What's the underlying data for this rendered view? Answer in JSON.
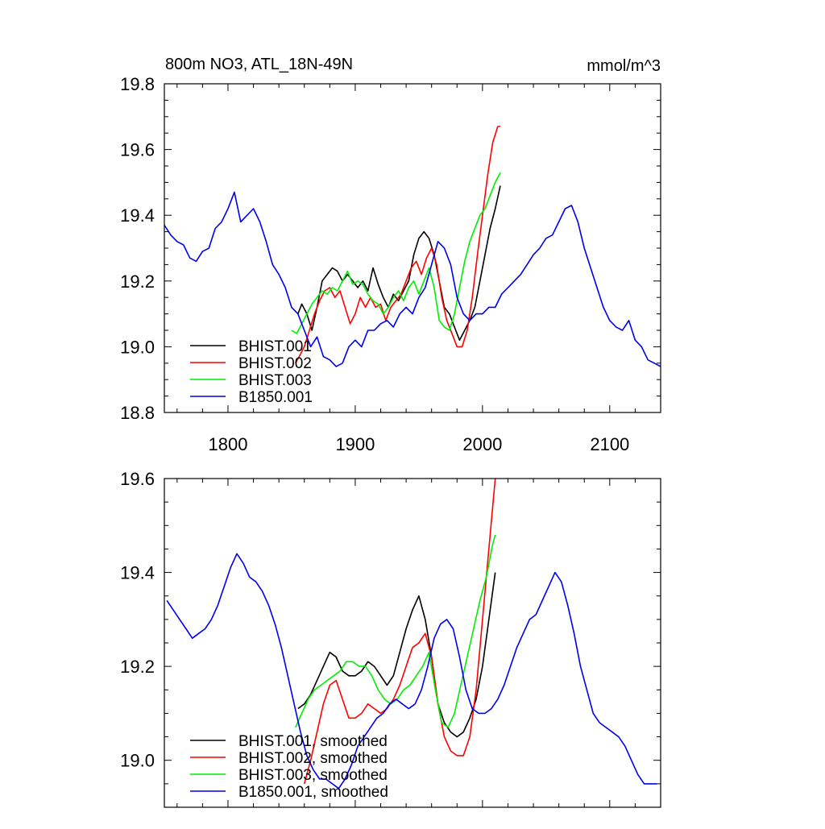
{
  "chart_data": [
    {
      "type": "line",
      "title": "800m NO3, ATL_18N-49N",
      "units": "mmol/m^3",
      "xlim": [
        1750,
        2140
      ],
      "ylim": [
        18.8,
        19.8
      ],
      "xticks": [
        1800,
        1900,
        2000,
        2100
      ],
      "xtick_labels": [
        "1800",
        "1900",
        "2000",
        "2100"
      ],
      "yticks": [
        18.8,
        19.0,
        19.2,
        19.4,
        19.6,
        19.8
      ],
      "ytick_labels": [
        "18.8",
        "19.0",
        "19.2",
        "19.4",
        "19.6",
        "19.8"
      ],
      "legend_position": "bottom-left",
      "series": [
        {
          "name": "BHIST.001",
          "color": "#000000",
          "x": [
            1855,
            1858,
            1862,
            1866,
            1870,
            1874,
            1878,
            1882,
            1886,
            1890,
            1894,
            1898,
            1902,
            1906,
            1910,
            1914,
            1918,
            1922,
            1926,
            1930,
            1934,
            1938,
            1942,
            1946,
            1950,
            1954,
            1958,
            1962,
            1966,
            1970,
            1974,
            1978,
            1982,
            1986,
            1990,
            1994,
            1998,
            2002,
            2006,
            2010,
            2014
          ],
          "y": [
            19.1,
            19.13,
            19.1,
            19.05,
            19.12,
            19.2,
            19.22,
            19.24,
            19.23,
            19.2,
            19.22,
            19.2,
            19.18,
            19.2,
            19.17,
            19.24,
            19.19,
            19.15,
            19.12,
            19.16,
            19.14,
            19.17,
            19.2,
            19.28,
            19.33,
            19.35,
            19.33,
            19.28,
            19.2,
            19.12,
            19.1,
            19.06,
            19.02,
            19.05,
            19.08,
            19.12,
            19.2,
            19.28,
            19.36,
            19.42,
            19.49
          ]
        },
        {
          "name": "BHIST.002",
          "color": "#ff0000",
          "x": [
            1853,
            1856,
            1860,
            1864,
            1868,
            1872,
            1876,
            1880,
            1884,
            1888,
            1892,
            1896,
            1900,
            1904,
            1908,
            1912,
            1916,
            1920,
            1924,
            1928,
            1932,
            1936,
            1940,
            1944,
            1948,
            1952,
            1956,
            1960,
            1964,
            1968,
            1972,
            1976,
            1980,
            1984,
            1988,
            1992,
            1996,
            2000,
            2004,
            2008,
            2012,
            2014
          ],
          "y": [
            18.95,
            18.97,
            19.0,
            19.05,
            19.1,
            19.14,
            19.17,
            19.18,
            19.15,
            19.17,
            19.12,
            19.07,
            19.1,
            19.15,
            19.12,
            19.15,
            19.12,
            19.13,
            19.08,
            19.12,
            19.14,
            19.16,
            19.2,
            19.24,
            19.26,
            19.22,
            19.27,
            19.3,
            19.25,
            19.15,
            19.08,
            19.04,
            19.0,
            19.0,
            19.05,
            19.15,
            19.28,
            19.4,
            19.52,
            19.62,
            19.67,
            19.67
          ]
        },
        {
          "name": "BHIST.003",
          "color": "#00ee00",
          "x": [
            1850,
            1854,
            1858,
            1862,
            1866,
            1870,
            1874,
            1878,
            1882,
            1886,
            1890,
            1894,
            1898,
            1902,
            1906,
            1910,
            1914,
            1918,
            1922,
            1926,
            1930,
            1934,
            1938,
            1942,
            1946,
            1950,
            1954,
            1958,
            1962,
            1966,
            1970,
            1974,
            1978,
            1982,
            1986,
            1990,
            1994,
            1998,
            2002,
            2006,
            2010,
            2014
          ],
          "y": [
            19.05,
            19.04,
            19.07,
            19.1,
            19.13,
            19.15,
            19.17,
            19.16,
            19.18,
            19.17,
            19.2,
            19.23,
            19.19,
            19.2,
            19.19,
            19.16,
            19.14,
            19.13,
            19.1,
            19.12,
            19.15,
            19.17,
            19.14,
            19.18,
            19.2,
            19.16,
            19.2,
            19.24,
            19.18,
            19.08,
            19.06,
            19.05,
            19.1,
            19.18,
            19.26,
            19.32,
            19.36,
            19.4,
            19.42,
            19.46,
            19.5,
            19.53
          ]
        },
        {
          "name": "B1850.001",
          "color": "#0000ee",
          "x": [
            1750,
            1755,
            1760,
            1765,
            1770,
            1775,
            1780,
            1785,
            1790,
            1795,
            1800,
            1805,
            1810,
            1815,
            1820,
            1825,
            1830,
            1835,
            1840,
            1845,
            1850,
            1855,
            1860,
            1865,
            1870,
            1875,
            1880,
            1885,
            1890,
            1895,
            1900,
            1905,
            1910,
            1915,
            1920,
            1925,
            1930,
            1935,
            1940,
            1945,
            1950,
            1955,
            1960,
            1965,
            1970,
            1975,
            1980,
            1985,
            1990,
            1995,
            2000,
            2005,
            2010,
            2015,
            2020,
            2025,
            2030,
            2035,
            2040,
            2045,
            2050,
            2055,
            2060,
            2065,
            2070,
            2075,
            2080,
            2085,
            2090,
            2095,
            2100,
            2105,
            2110,
            2115,
            2120,
            2125,
            2130,
            2135,
            2140
          ],
          "y": [
            19.37,
            19.34,
            19.32,
            19.31,
            19.27,
            19.26,
            19.29,
            19.3,
            19.36,
            19.38,
            19.42,
            19.47,
            19.38,
            19.4,
            19.42,
            19.38,
            19.32,
            19.25,
            19.22,
            19.18,
            19.12,
            19.1,
            19.05,
            19.0,
            19.03,
            18.97,
            18.96,
            18.94,
            18.95,
            19.0,
            19.02,
            19.0,
            19.05,
            19.05,
            19.07,
            19.08,
            19.06,
            19.1,
            19.12,
            19.1,
            19.15,
            19.18,
            19.25,
            19.32,
            19.3,
            19.25,
            19.15,
            19.1,
            19.08,
            19.1,
            19.1,
            19.12,
            19.12,
            19.16,
            19.18,
            19.2,
            19.22,
            19.25,
            19.28,
            19.3,
            19.33,
            19.34,
            19.38,
            19.42,
            19.43,
            19.38,
            19.3,
            19.24,
            19.18,
            19.12,
            19.08,
            19.06,
            19.05,
            19.08,
            19.02,
            19.0,
            18.96,
            18.95,
            18.94
          ]
        }
      ]
    },
    {
      "type": "line",
      "title": "",
      "xlim": [
        1750,
        2140
      ],
      "ylim": [
        18.9,
        19.6
      ],
      "xticks": [
        1800,
        1900,
        2000,
        2100
      ],
      "yticks": [
        19.0,
        19.2,
        19.4,
        19.6
      ],
      "ytick_labels": [
        "19.0",
        "19.2",
        "19.4",
        "19.6"
      ],
      "legend_position": "bottom-left",
      "series": [
        {
          "name": "BHIST.001, smoothed",
          "color": "#000000",
          "x": [
            1855,
            1860,
            1865,
            1870,
            1875,
            1880,
            1885,
            1890,
            1895,
            1900,
            1905,
            1910,
            1915,
            1920,
            1925,
            1930,
            1935,
            1940,
            1945,
            1950,
            1955,
            1960,
            1965,
            1970,
            1975,
            1980,
            1985,
            1990,
            1995,
            2000,
            2005,
            2010
          ],
          "y": [
            19.11,
            19.12,
            19.14,
            19.17,
            19.2,
            19.23,
            19.22,
            19.19,
            19.18,
            19.18,
            19.19,
            19.21,
            19.2,
            19.18,
            19.16,
            19.18,
            19.23,
            19.28,
            19.32,
            19.35,
            19.3,
            19.22,
            19.12,
            19.08,
            19.06,
            19.05,
            19.06,
            19.09,
            19.13,
            19.2,
            19.3,
            19.4
          ]
        },
        {
          "name": "BHIST.002, smoothed",
          "color": "#ff0000",
          "x": [
            1860,
            1865,
            1870,
            1875,
            1880,
            1885,
            1890,
            1895,
            1900,
            1905,
            1910,
            1915,
            1920,
            1925,
            1930,
            1935,
            1940,
            1945,
            1950,
            1955,
            1960,
            1965,
            1970,
            1975,
            1980,
            1985,
            1990,
            1995,
            2000,
            2005,
            2010
          ],
          "y": [
            18.95,
            19.0,
            19.06,
            19.12,
            19.16,
            19.17,
            19.13,
            19.09,
            19.09,
            19.1,
            19.12,
            19.11,
            19.1,
            19.11,
            19.13,
            19.16,
            19.2,
            19.24,
            19.25,
            19.27,
            19.22,
            19.12,
            19.05,
            19.02,
            19.01,
            19.01,
            19.05,
            19.15,
            19.3,
            19.45,
            19.6
          ]
        },
        {
          "name": "BHIST.003, smoothed",
          "color": "#00ee00",
          "x": [
            1853,
            1858,
            1863,
            1868,
            1873,
            1878,
            1883,
            1888,
            1893,
            1898,
            1903,
            1908,
            1913,
            1918,
            1923,
            1928,
            1933,
            1938,
            1943,
            1948,
            1953,
            1958,
            1963,
            1968,
            1973,
            1978,
            1983,
            1988,
            1993,
            1998,
            2003,
            2008,
            2010
          ],
          "y": [
            19.07,
            19.1,
            19.13,
            19.15,
            19.16,
            19.17,
            19.18,
            19.19,
            19.21,
            19.21,
            19.2,
            19.2,
            19.18,
            19.15,
            19.13,
            19.12,
            19.13,
            19.15,
            19.16,
            19.18,
            19.2,
            19.23,
            19.15,
            19.08,
            19.07,
            19.1,
            19.16,
            19.22,
            19.28,
            19.34,
            19.39,
            19.46,
            19.48
          ]
        },
        {
          "name": "B1850.001, smoothed",
          "color": "#0000ee",
          "x": [
            1752,
            1757,
            1762,
            1767,
            1772,
            1777,
            1782,
            1787,
            1792,
            1797,
            1802,
            1807,
            1812,
            1817,
            1822,
            1827,
            1832,
            1837,
            1842,
            1847,
            1852,
            1857,
            1862,
            1867,
            1872,
            1877,
            1882,
            1887,
            1892,
            1897,
            1902,
            1907,
            1912,
            1917,
            1922,
            1927,
            1932,
            1937,
            1942,
            1947,
            1952,
            1957,
            1962,
            1967,
            1972,
            1977,
            1982,
            1987,
            1992,
            1997,
            2002,
            2007,
            2012,
            2017,
            2022,
            2027,
            2032,
            2037,
            2042,
            2047,
            2052,
            2057,
            2062,
            2067,
            2072,
            2077,
            2082,
            2087,
            2092,
            2097,
            2102,
            2107,
            2112,
            2117,
            2122,
            2127,
            2132,
            2137
          ],
          "y": [
            19.34,
            19.32,
            19.3,
            19.28,
            19.26,
            19.27,
            19.28,
            19.3,
            19.33,
            19.37,
            19.41,
            19.44,
            19.42,
            19.39,
            19.38,
            19.36,
            19.33,
            19.29,
            19.24,
            19.18,
            19.12,
            19.06,
            19.01,
            18.98,
            18.96,
            18.96,
            18.95,
            18.94,
            18.96,
            18.99,
            19.03,
            19.05,
            19.07,
            19.09,
            19.1,
            19.12,
            19.13,
            19.12,
            19.11,
            19.12,
            19.15,
            19.2,
            19.26,
            19.29,
            19.3,
            19.28,
            19.22,
            19.15,
            19.11,
            19.1,
            19.1,
            19.11,
            19.13,
            19.16,
            19.2,
            19.24,
            19.27,
            19.3,
            19.31,
            19.34,
            19.37,
            19.4,
            19.38,
            19.33,
            19.27,
            19.2,
            19.15,
            19.1,
            19.08,
            19.07,
            19.06,
            19.05,
            19.03,
            19.0,
            18.97,
            18.95,
            18.95,
            18.95
          ]
        }
      ]
    }
  ]
}
